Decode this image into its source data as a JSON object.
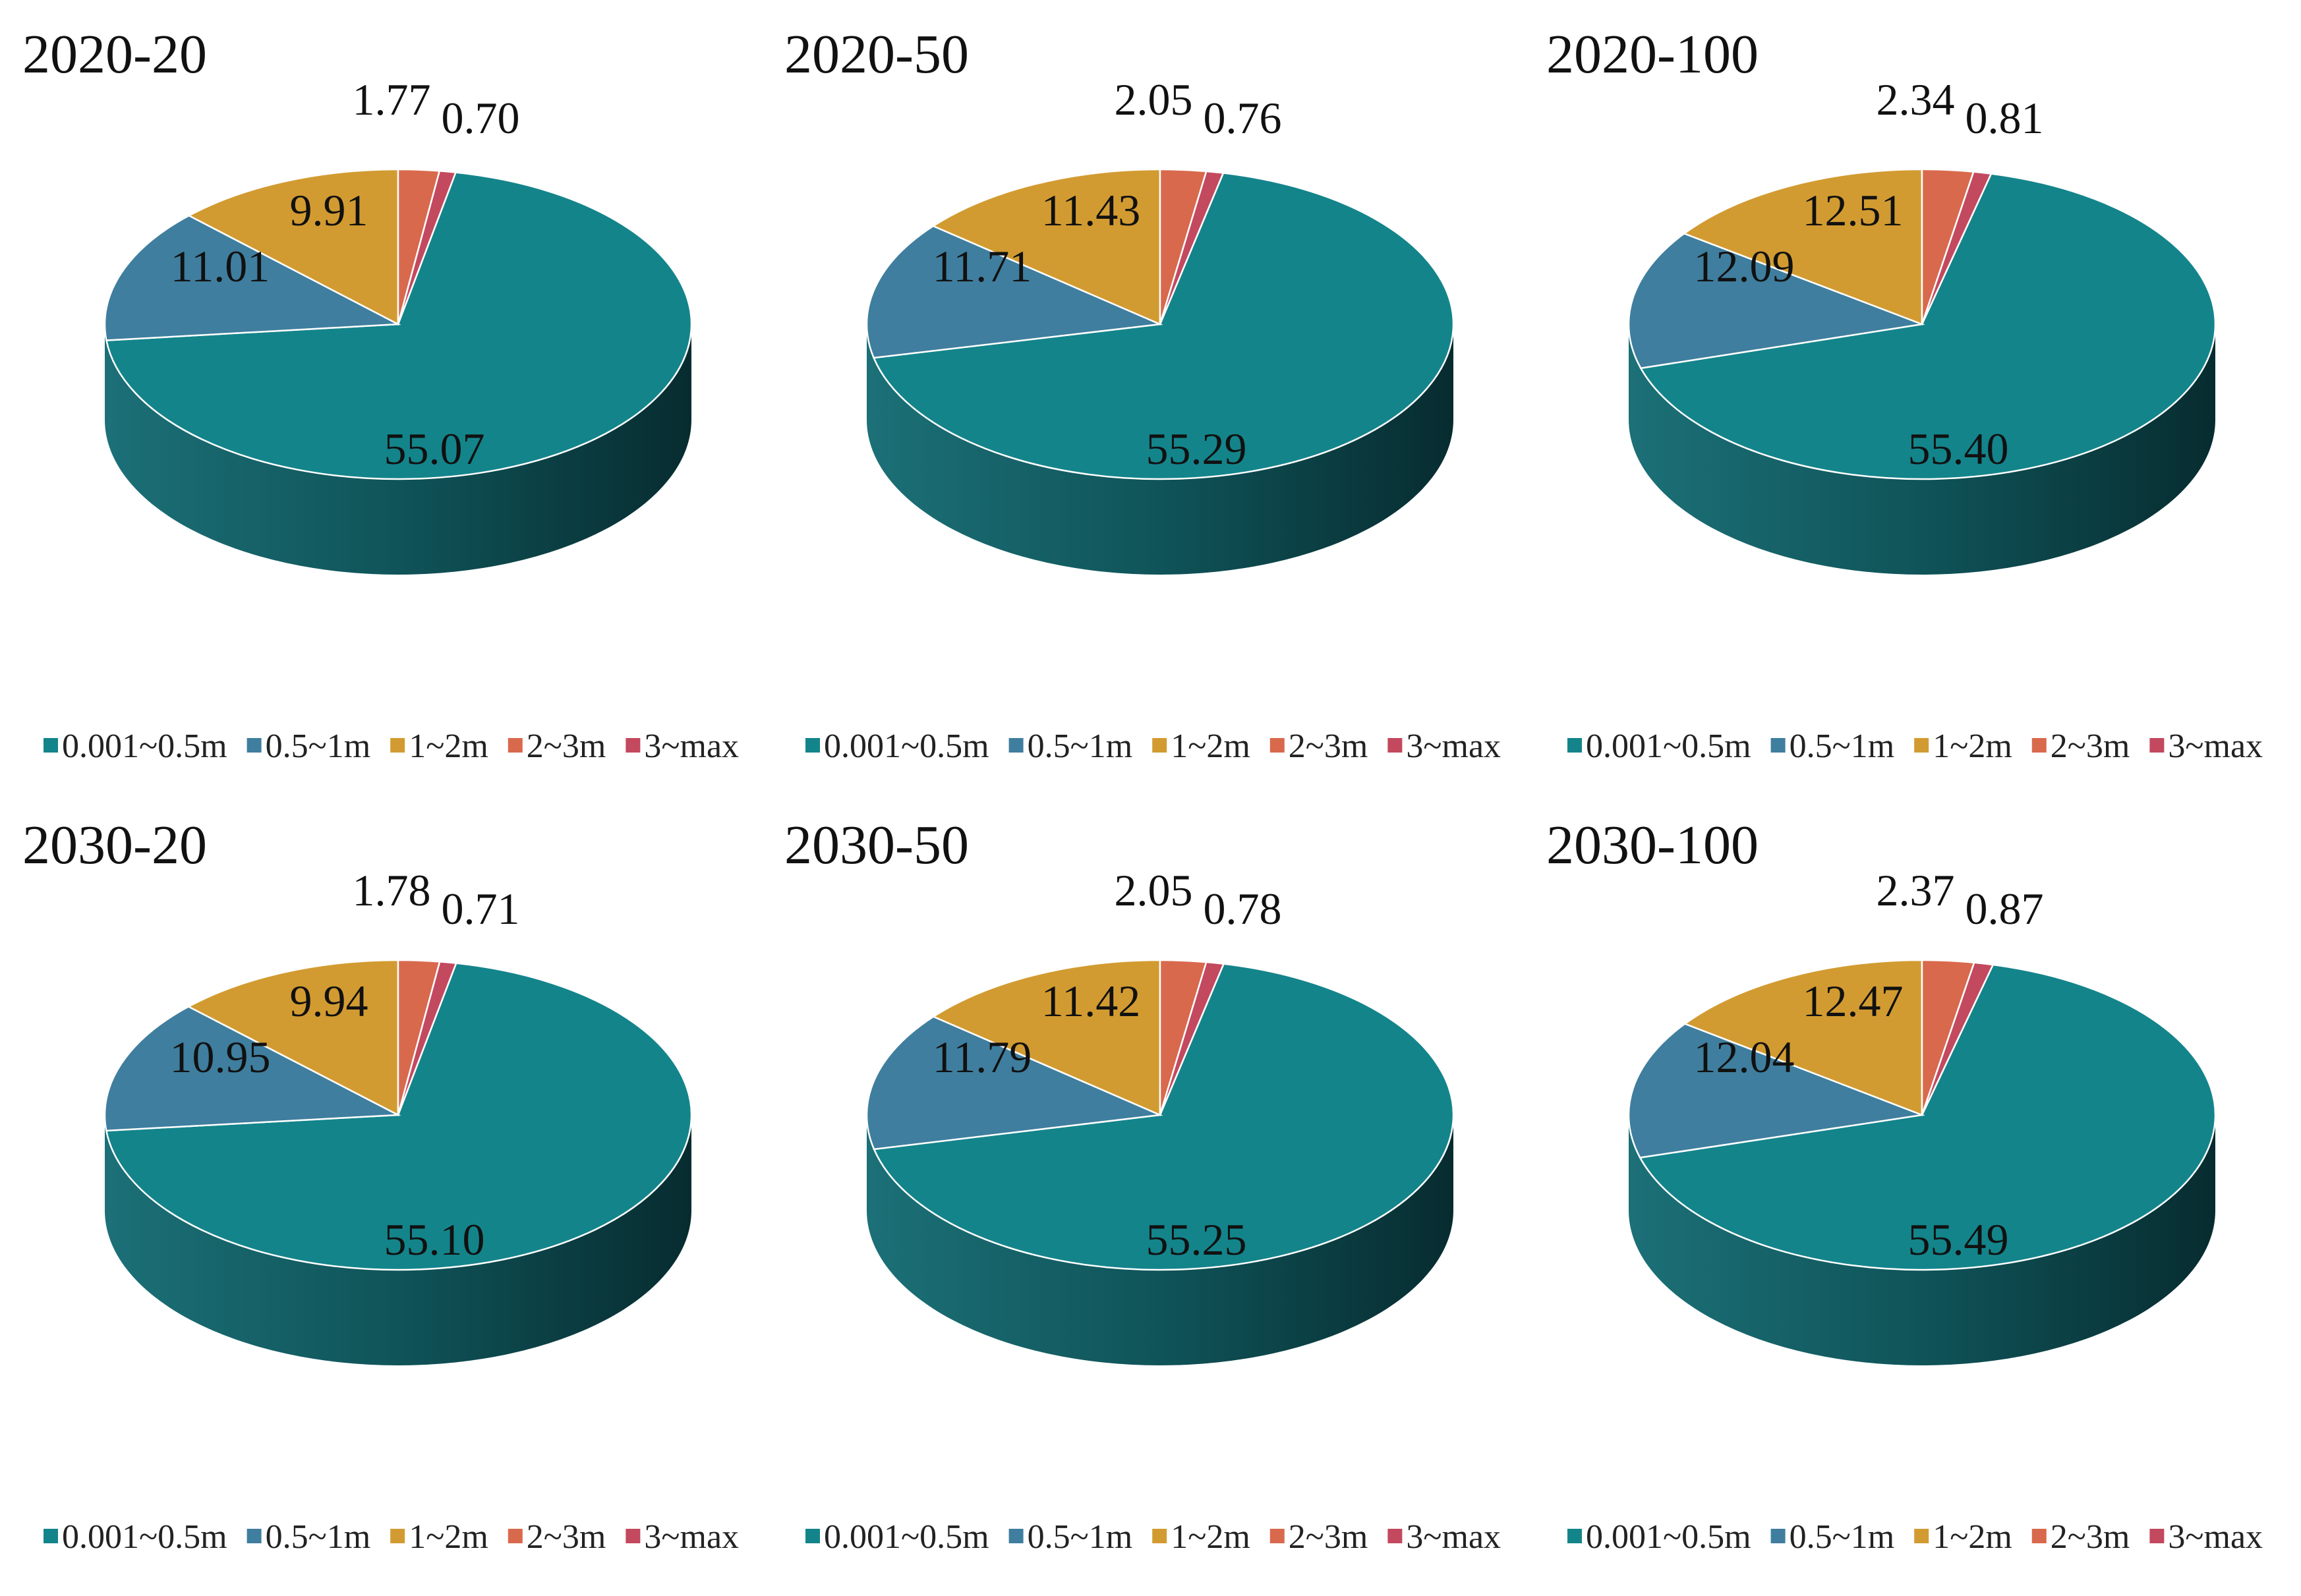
{
  "figure": {
    "legend_categories": [
      "0.001~0.5m",
      "0.5~1m",
      "1~2m",
      "2~3m",
      "3~max"
    ],
    "colors": {
      "0.001~0.5m": "#14848b",
      "0.5~1m": "#3f7e9e",
      "1~2m": "#d29b31",
      "2~3m": "#d9694c",
      "3~max": "#c3495f"
    }
  },
  "chart_data": [
    {
      "type": "pie",
      "style": "3d",
      "title": "2020-20",
      "categories": [
        "0.001~0.5m",
        "0.5~1m",
        "1~2m",
        "2~3m",
        "3~max"
      ],
      "values": [
        55.07,
        11.01,
        9.91,
        1.77,
        0.7
      ],
      "labels": [
        "55.07",
        "11.01",
        "9.91",
        "1.77",
        "0.70"
      ],
      "legend": "bottom"
    },
    {
      "type": "pie",
      "style": "3d",
      "title": "2020-50",
      "categories": [
        "0.001~0.5m",
        "0.5~1m",
        "1~2m",
        "2~3m",
        "3~max"
      ],
      "values": [
        55.29,
        11.71,
        11.43,
        2.05,
        0.76
      ],
      "labels": [
        "55.29",
        "11.71",
        "11.43",
        "2.05",
        "0.76"
      ],
      "legend": "bottom"
    },
    {
      "type": "pie",
      "style": "3d",
      "title": "2020-100",
      "categories": [
        "0.001~0.5m",
        "0.5~1m",
        "1~2m",
        "2~3m",
        "3~max"
      ],
      "values": [
        55.4,
        12.09,
        12.51,
        2.34,
        0.81
      ],
      "labels": [
        "55.40",
        "12.09",
        "12.51",
        "2.34",
        "0.81"
      ],
      "legend": "bottom"
    },
    {
      "type": "pie",
      "style": "3d",
      "title": "2030-20",
      "categories": [
        "0.001~0.5m",
        "0.5~1m",
        "1~2m",
        "2~3m",
        "3~max"
      ],
      "values": [
        55.1,
        10.95,
        9.94,
        1.78,
        0.71
      ],
      "labels": [
        "55.10",
        "10.95",
        "9.94",
        "1.78",
        "0.71"
      ],
      "legend": "bottom"
    },
    {
      "type": "pie",
      "style": "3d",
      "title": "2030-50",
      "categories": [
        "0.001~0.5m",
        "0.5~1m",
        "1~2m",
        "2~3m",
        "3~max"
      ],
      "values": [
        55.25,
        11.79,
        11.42,
        2.05,
        0.78
      ],
      "labels": [
        "55.25",
        "11.79",
        "11.42",
        "2.05",
        "0.78"
      ],
      "legend": "bottom"
    },
    {
      "type": "pie",
      "style": "3d",
      "title": "2030-100",
      "categories": [
        "0.001~0.5m",
        "0.5~1m",
        "1~2m",
        "2~3m",
        "3~max"
      ],
      "values": [
        55.49,
        12.04,
        12.47,
        2.37,
        0.87
      ],
      "labels": [
        "55.49",
        "12.04",
        "12.47",
        "2.37",
        "0.87"
      ],
      "legend": "bottom"
    }
  ]
}
